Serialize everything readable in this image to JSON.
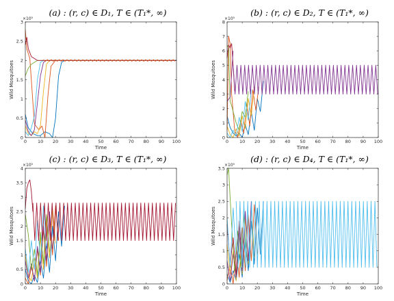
{
  "chart_data": [
    {
      "type": "line",
      "title": "(a) : (r, c) ∈ D₁, T ∈ (T₁*, ∞)",
      "xlabel": "Time",
      "ylabel": "Wild Mosquitoes",
      "multiplier": "×10⁵",
      "xlim": [
        0,
        100
      ],
      "ylim": [
        0,
        3
      ],
      "xticks": [
        0,
        10,
        20,
        30,
        40,
        50,
        60,
        70,
        80,
        90,
        100
      ],
      "yticks": [
        0,
        0.5,
        1,
        1.5,
        2,
        2.5,
        3
      ],
      "grid": false,
      "legend": "none",
      "series": [
        {
          "color": "#0072BD",
          "x": [
            0,
            2,
            5,
            8,
            10,
            13,
            16,
            18,
            20,
            22,
            24,
            26,
            100
          ],
          "y": [
            0.6,
            0.25,
            0.1,
            0.05,
            0.05,
            0.15,
            0.1,
            0.0,
            0.5,
            1.6,
            1.95,
            2.0,
            2.0
          ]
        },
        {
          "color": "#D95319",
          "x": [
            0,
            1,
            3,
            6,
            9,
            11,
            13,
            15,
            17,
            20,
            100
          ],
          "y": [
            2.8,
            2.3,
            2.05,
            0.35,
            0.2,
            0.3,
            0.0,
            1.1,
            1.85,
            2.0,
            2.0
          ]
        },
        {
          "color": "#EDB120",
          "x": [
            0,
            2,
            4,
            6,
            8,
            10,
            12,
            14,
            16,
            100
          ],
          "y": [
            0.3,
            0.1,
            0.05,
            0.15,
            0.1,
            0.3,
            1.2,
            1.9,
            2.0,
            2.0
          ]
        },
        {
          "color": "#7E2F8E",
          "x": [
            0,
            2,
            4,
            6,
            8,
            10,
            12,
            14,
            100
          ],
          "y": [
            0.45,
            0.15,
            0.05,
            0.2,
            0.9,
            1.6,
            1.95,
            2.0,
            2.0
          ]
        },
        {
          "color": "#77AC30",
          "x": [
            0,
            2,
            4,
            6,
            8,
            10,
            12,
            100
          ],
          "y": [
            1.6,
            1.8,
            1.9,
            1.95,
            2.0,
            2.0,
            2.0,
            2.0
          ]
        },
        {
          "color": "#4DBEEE",
          "x": [
            0,
            2,
            4,
            6,
            8,
            10,
            12,
            100
          ],
          "y": [
            0.15,
            0.05,
            0.25,
            0.55,
            1.5,
            1.95,
            2.0,
            2.0
          ]
        },
        {
          "color": "#A2142F",
          "x": [
            0,
            1,
            2,
            3,
            4,
            6,
            8,
            10,
            100
          ],
          "y": [
            2.4,
            2.6,
            2.3,
            2.2,
            2.1,
            2.05,
            2.0,
            2.0,
            2.0
          ]
        },
        {
          "color": "#D95319",
          "osc": {
            "x0": 12,
            "x1": 100,
            "base": 2.0,
            "amp": 0.02,
            "period": 2.6
          }
        }
      ]
    },
    {
      "type": "line",
      "title": "(b) : (r, c) ∈ D₂, T ∈ (T₁*, ∞)",
      "xlabel": "Time",
      "ylabel": "Wild Mosquitoes",
      "multiplier": "×10⁵",
      "xlim": [
        0,
        100
      ],
      "ylim": [
        0,
        8
      ],
      "xticks": [
        0,
        10,
        20,
        30,
        40,
        50,
        60,
        70,
        80,
        90,
        100
      ],
      "yticks": [
        0,
        1,
        2,
        3,
        4,
        5,
        6,
        7,
        8
      ],
      "grid": false,
      "legend": "none",
      "series": [
        {
          "color": "#0072BD",
          "x": [
            0,
            2,
            4,
            6,
            8,
            10,
            12,
            14,
            16,
            18,
            20,
            22,
            24
          ],
          "y": [
            1.5,
            0.7,
            0.3,
            0.1,
            0.3,
            0.0,
            0.9,
            0.2,
            1.8,
            0.5,
            2.7,
            1.8,
            3.9
          ]
        },
        {
          "color": "#D95319",
          "x": [
            0,
            1,
            2,
            3,
            5,
            7,
            9,
            11,
            13,
            15,
            17,
            19,
            21
          ],
          "y": [
            0.5,
            7.0,
            6.5,
            3.0,
            0.5,
            0.0,
            1.2,
            0.3,
            2.4,
            0.8,
            3.3,
            1.9,
            3.5
          ]
        },
        {
          "color": "#EDB120",
          "x": [
            0,
            2,
            4,
            6,
            8,
            10,
            12,
            14,
            16,
            18
          ],
          "y": [
            0.8,
            0.2,
            0.0,
            0.6,
            0.1,
            1.5,
            0.6,
            2.7,
            1.5,
            3.5
          ]
        },
        {
          "color": "#77AC30",
          "x": [
            0,
            1,
            2,
            3,
            4,
            6,
            8,
            10,
            12,
            14
          ],
          "y": [
            6.4,
            6.2,
            2.5,
            2.2,
            1.8,
            1.0,
            0.5,
            1.8,
            1.4,
            3.2
          ]
        },
        {
          "color": "#4DBEEE",
          "x": [
            0,
            2,
            4,
            6,
            8,
            10,
            12,
            14,
            16
          ],
          "y": [
            0.3,
            0.0,
            0.5,
            0.1,
            1.4,
            0.4,
            2.5,
            1.2,
            3.3
          ]
        },
        {
          "color": "#A2142F",
          "x": [
            0,
            1,
            2,
            3,
            4,
            5
          ],
          "y": [
            5.5,
            6.4,
            6.2,
            6.5,
            5.0,
            3.2
          ]
        },
        {
          "color": "#7E2F8E",
          "x": [
            0,
            2,
            4
          ],
          "y": [
            2.5,
            2.8,
            6.0
          ]
        },
        {
          "color": "#7E2F8E",
          "osc": {
            "x0": 4,
            "x1": 100,
            "base": 4.0,
            "amp": 1.0,
            "period": 2.55
          }
        }
      ]
    },
    {
      "type": "line",
      "title": "(c) : (r, c) ∈ D₃, T ∈ (T₁*, ∞)",
      "xlabel": "Time",
      "ylabel": "Wild Mosquitoes",
      "multiplier": "×10⁵",
      "xlim": [
        0,
        100
      ],
      "ylim": [
        0,
        4
      ],
      "xticks": [
        0,
        10,
        20,
        30,
        40,
        50,
        60,
        70,
        80,
        90,
        100
      ],
      "yticks": [
        0,
        0.5,
        1,
        1.5,
        2,
        2.5,
        3,
        3.5,
        4
      ],
      "grid": false,
      "legend": "none",
      "series": [
        {
          "color": "#0072BD",
          "x": [
            0,
            2,
            4,
            6,
            8,
            10,
            12,
            14,
            16,
            18,
            20,
            22,
            24,
            26
          ],
          "y": [
            0.5,
            0.1,
            0.0,
            0.3,
            0.05,
            0.8,
            0.2,
            1.4,
            0.4,
            2.0,
            0.8,
            2.5,
            1.3,
            2.7
          ]
        },
        {
          "color": "#D95319",
          "x": [
            0,
            2,
            4,
            6,
            8,
            10,
            12,
            14,
            16,
            18,
            20,
            22
          ],
          "y": [
            0.2,
            0.0,
            0.6,
            0.1,
            1.2,
            0.3,
            1.9,
            0.6,
            2.4,
            1.0,
            2.7,
            1.5
          ]
        },
        {
          "color": "#EDB120",
          "x": [
            0,
            2,
            4,
            6,
            8,
            10,
            12,
            14,
            16,
            18,
            20
          ],
          "y": [
            1.0,
            0.3,
            0.1,
            0.9,
            0.2,
            1.6,
            0.5,
            2.2,
            0.9,
            2.6,
            1.4
          ]
        },
        {
          "color": "#7E2F8E",
          "x": [
            0,
            2,
            4,
            6,
            8,
            10,
            12,
            14,
            16,
            18
          ],
          "y": [
            0.8,
            0.2,
            0.7,
            0.1,
            1.3,
            0.4,
            2.0,
            0.8,
            2.5,
            1.2
          ]
        },
        {
          "color": "#77AC30",
          "x": [
            0,
            2,
            4,
            6,
            8,
            10,
            12,
            14,
            16
          ],
          "y": [
            2.4,
            1.7,
            0.5,
            1.2,
            0.3,
            1.8,
            0.7,
            2.4,
            1.1
          ]
        },
        {
          "color": "#4DBEEE",
          "x": [
            0,
            2,
            4,
            6,
            8,
            10,
            12,
            14
          ],
          "y": [
            1.2,
            0.4,
            1.5,
            0.5,
            2.2,
            0.8,
            2.7,
            1.3
          ]
        },
        {
          "color": "#A2142F",
          "x": [
            0,
            1,
            2,
            3,
            4,
            5
          ],
          "y": [
            2.6,
            3.3,
            3.5,
            3.6,
            3.2,
            2.5
          ]
        },
        {
          "color": "#A2142F",
          "osc": {
            "x0": 5,
            "x1": 100,
            "base": 2.15,
            "amp": 0.65,
            "period": 2.55
          }
        }
      ]
    },
    {
      "type": "line",
      "title": "(d) : (r, c) ∈ D₄, T ∈ (T₁*, ∞)",
      "xlabel": "Time",
      "ylabel": "Wild Mosquitoes",
      "multiplier": "×10⁵",
      "xlim": [
        0,
        100
      ],
      "ylim": [
        0,
        3.5
      ],
      "xticks": [
        0,
        10,
        20,
        30,
        40,
        50,
        60,
        70,
        80,
        90,
        100
      ],
      "yticks": [
        0,
        0.5,
        1,
        1.5,
        2,
        2.5,
        3,
        3.5
      ],
      "grid": false,
      "legend": "none",
      "series": [
        {
          "color": "#0072BD",
          "x": [
            0,
            2,
            4,
            6,
            8,
            10,
            12,
            14,
            16,
            18,
            20,
            22,
            24
          ],
          "y": [
            0.3,
            0.05,
            0.4,
            0.1,
            0.9,
            0.2,
            1.4,
            0.4,
            1.9,
            0.6,
            2.3,
            0.9,
            2.5
          ]
        },
        {
          "color": "#D95319",
          "x": [
            0,
            2,
            4,
            6,
            8,
            10,
            12,
            14,
            16,
            18,
            20
          ],
          "y": [
            0.1,
            0.6,
            0.0,
            1.1,
            0.2,
            1.7,
            0.4,
            2.1,
            0.7,
            2.4,
            0.9
          ]
        },
        {
          "color": "#EDB120",
          "x": [
            0,
            2,
            4,
            6,
            8,
            10,
            12,
            14,
            16,
            18
          ],
          "y": [
            1.2,
            0.3,
            1.0,
            0.1,
            1.5,
            0.3,
            2.0,
            0.6,
            2.4,
            0.8
          ]
        },
        {
          "color": "#7E2F8E",
          "x": [
            0,
            2,
            4,
            6,
            8,
            10,
            12,
            14,
            16
          ],
          "y": [
            0.7,
            0.1,
            0.9,
            0.2,
            1.6,
            0.4,
            2.2,
            0.7,
            2.5
          ]
        },
        {
          "color": "#77AC30",
          "x": [
            0,
            1,
            2,
            3,
            5,
            7,
            9,
            11,
            13
          ],
          "y": [
            3.3,
            3.5,
            2.6,
            1.8,
            0.4,
            1.6,
            0.5,
            2.1,
            0.8
          ]
        },
        {
          "color": "#A2142F",
          "x": [
            0,
            2,
            4,
            6,
            8,
            10
          ],
          "y": [
            1.8,
            0.6,
            1.4,
            0.3,
            1.9,
            0.6
          ]
        },
        {
          "color": "#4DBEEE",
          "x": [
            0,
            2,
            4,
            6
          ],
          "y": [
            2.0,
            0.5,
            2.3,
            0.8
          ]
        },
        {
          "color": "#4DBEEE",
          "osc": {
            "x0": 6,
            "x1": 100,
            "base": 1.5,
            "amp": 1.0,
            "period": 2.55
          }
        }
      ]
    }
  ]
}
